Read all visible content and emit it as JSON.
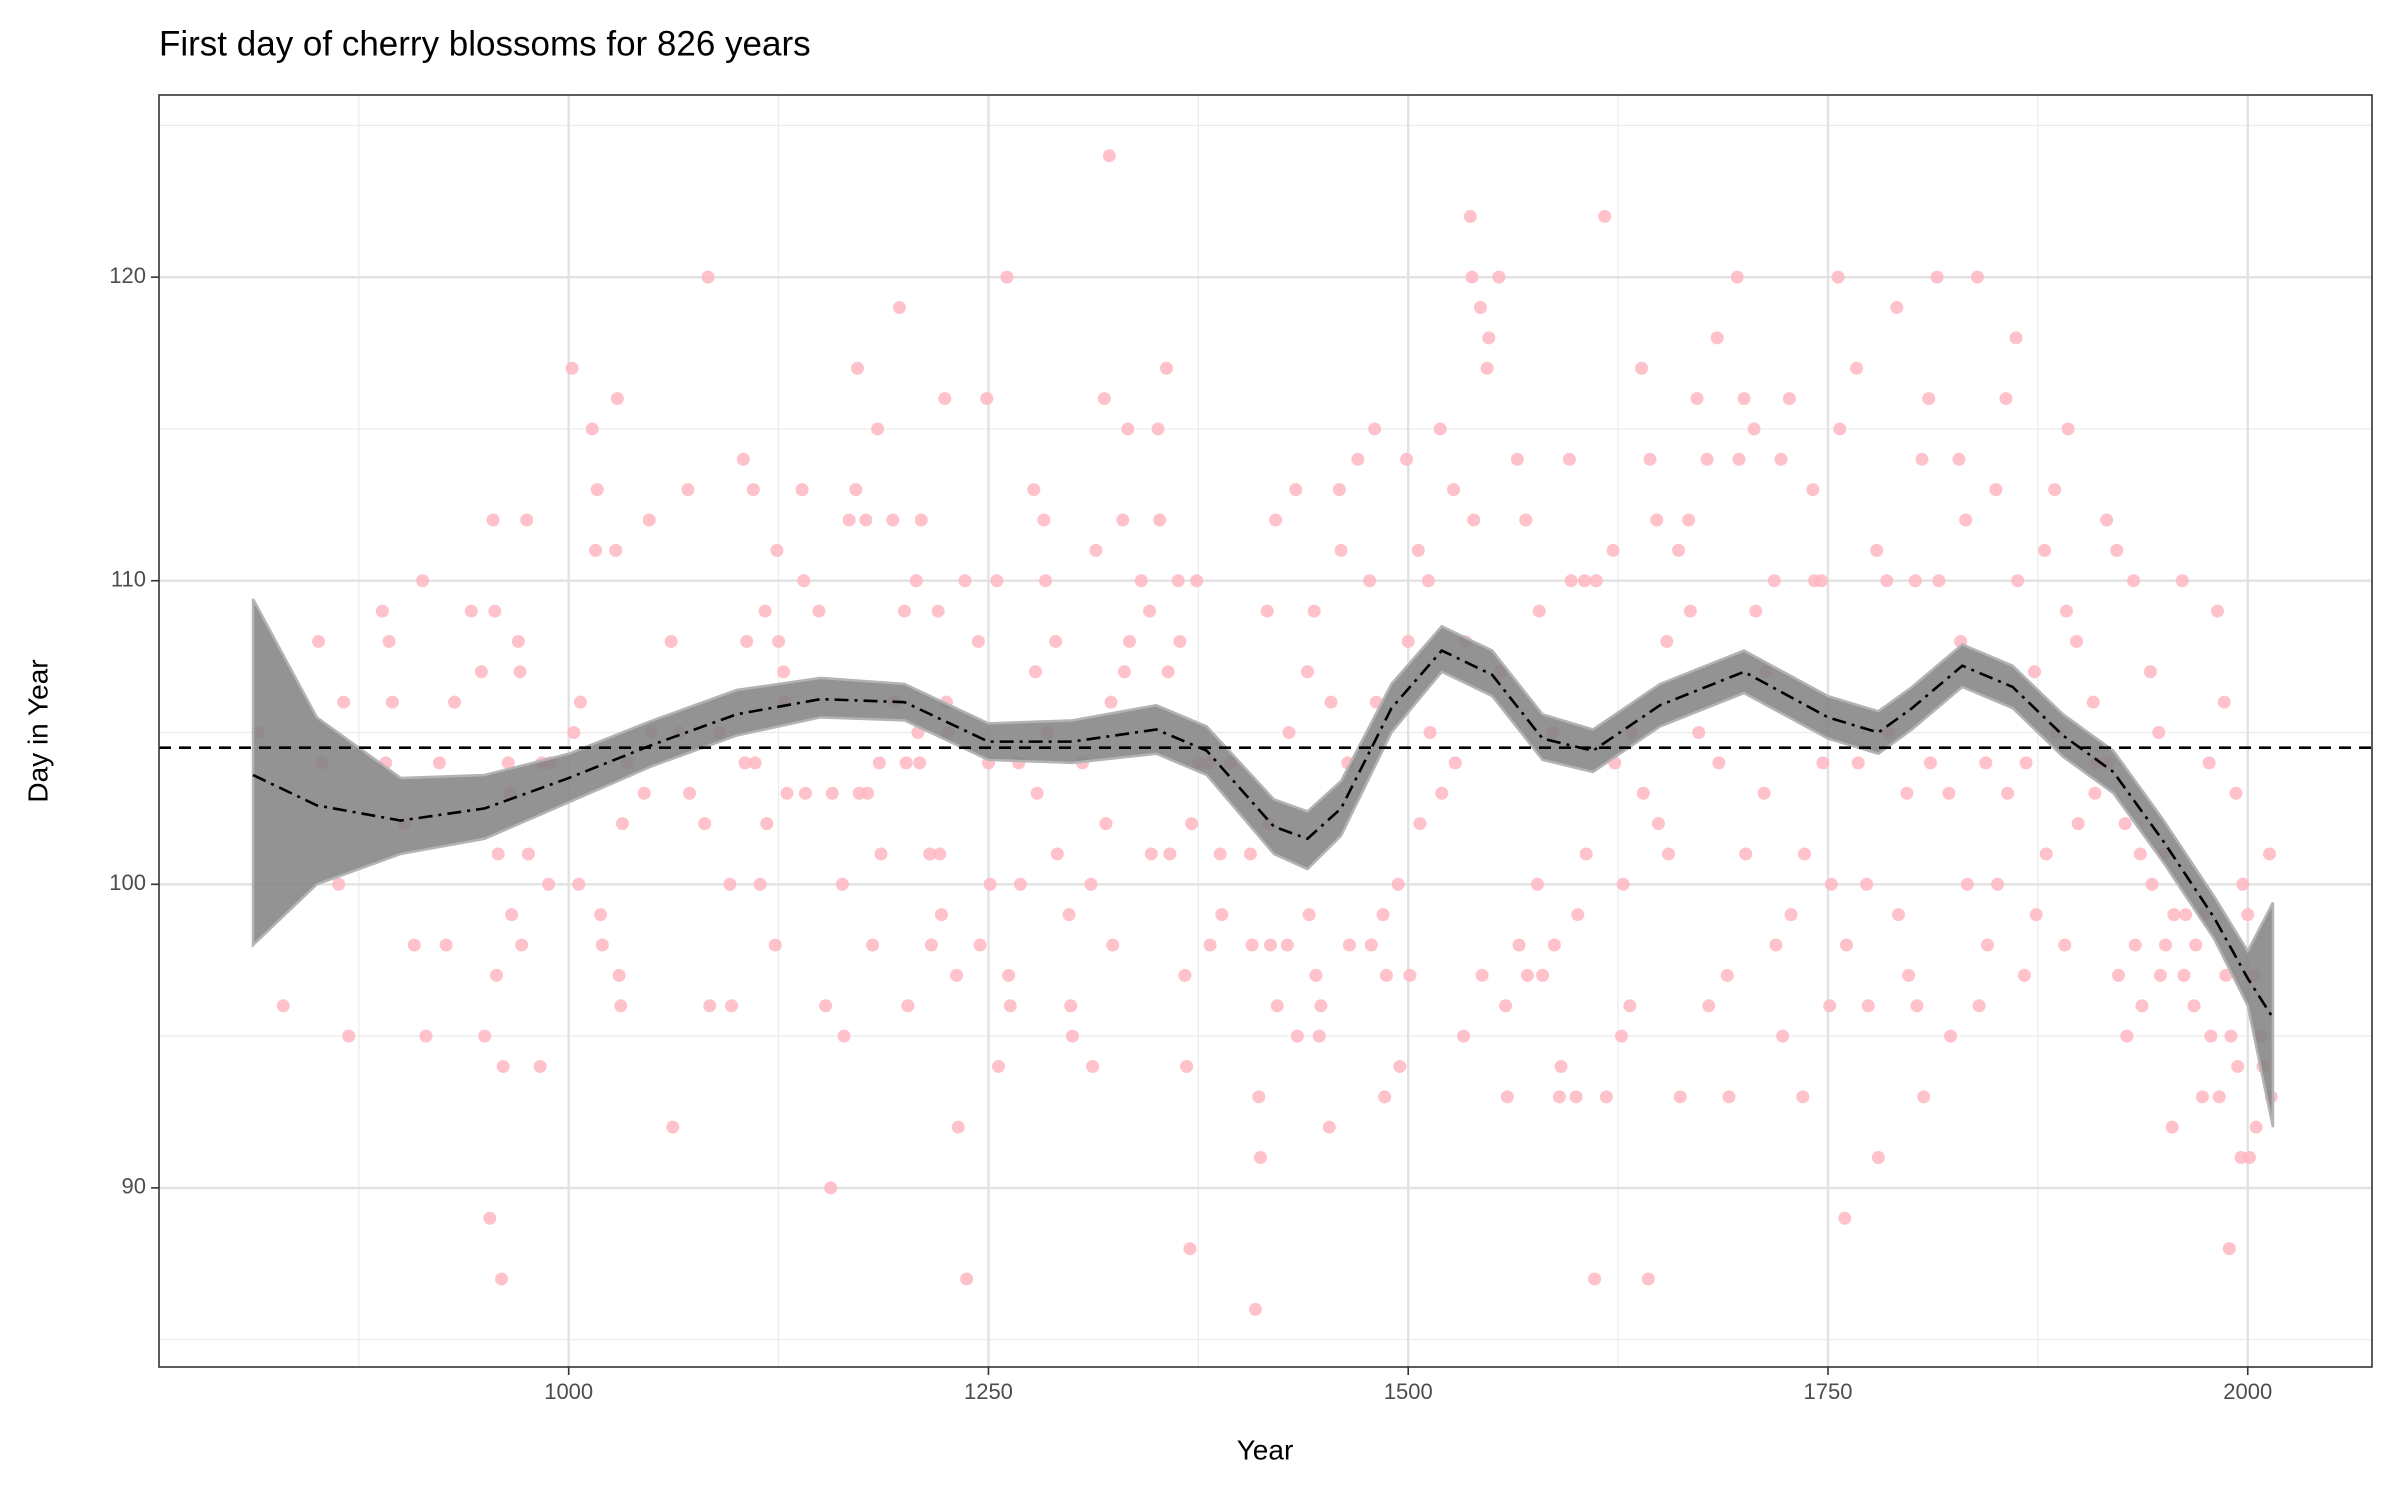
{
  "chart_data": {
    "type": "scatter",
    "title": "First day of cherry blossoms for 826 years",
    "x_label": "Year",
    "y_label": "Day in Year",
    "xlim": [
      756,
      2074
    ],
    "ylim": [
      84.1,
      126.0
    ],
    "xticks": [
      1000,
      1250,
      1500,
      1750,
      2000
    ],
    "yticks": [
      90,
      100,
      110,
      120
    ],
    "x_minor_ticks": [
      875,
      1125,
      1375,
      1625,
      1875
    ],
    "y_minor_ticks": [
      85,
      95,
      105,
      115,
      125
    ],
    "grid": true,
    "color": "#ffb6c1",
    "x": [
      815,
      830,
      851,
      853,
      863,
      866,
      869,
      889,
      891,
      893,
      895,
      902,
      913,
      915,
      908,
      923,
      927,
      932,
      942,
      948,
      950,
      953,
      955,
      956,
      957,
      958,
      960,
      961,
      964,
      965,
      966,
      970,
      971,
      972,
      975,
      976,
      983,
      984,
      988,
      989,
      1002,
      1003,
      1006,
      1007,
      1014,
      1016,
      1017,
      1019,
      1020,
      1029,
      1028,
      1030,
      1031,
      1032,
      1035,
      1045,
      1048,
      1049,
      1061,
      1062,
      1066,
      1071,
      1072,
      1081,
      1083,
      1084,
      1090,
      1096,
      1097,
      1104,
      1105,
      1106,
      1110,
      1111,
      1114,
      1117,
      1118,
      1123,
      1124,
      1125,
      1128,
      1129,
      1130,
      1139,
      1140,
      1141,
      1149,
      1153,
      1156,
      1157,
      1163,
      1164,
      1167,
      1171,
      1172,
      1173,
      1177,
      1178,
      1181,
      1184,
      1185,
      1186,
      1193,
      1194,
      1197,
      1200,
      1201,
      1202,
      1207,
      1208,
      1209,
      1210,
      1215,
      1216,
      1220,
      1221,
      1222,
      1224,
      1225,
      1226,
      1231,
      1232,
      1236,
      1237,
      1244,
      1245,
      1249,
      1250,
      1251,
      1255,
      1256,
      1261,
      1262,
      1263,
      1268,
      1269,
      1277,
      1278,
      1279,
      1283,
      1284,
      1285,
      1290,
      1291,
      1298,
      1299,
      1300,
      1306,
      1311,
      1312,
      1314,
      1319,
      1320,
      1322,
      1323,
      1324,
      1330,
      1331,
      1333,
      1334,
      1341,
      1346,
      1347,
      1351,
      1352,
      1356,
      1357,
      1358,
      1363,
      1364,
      1367,
      1368,
      1370,
      1371,
      1374,
      1375,
      1381,
      1382,
      1388,
      1389,
      1394,
      1406,
      1407,
      1409,
      1411,
      1412,
      1416,
      1417,
      1418,
      1421,
      1422,
      1428,
      1429,
      1433,
      1434,
      1440,
      1441,
      1444,
      1445,
      1447,
      1448,
      1453,
      1454,
      1459,
      1460,
      1464,
      1465,
      1470,
      1477,
      1478,
      1480,
      1481,
      1485,
      1486,
      1487,
      1494,
      1495,
      1499,
      1500,
      1501,
      1506,
      1507,
      1512,
      1513,
      1519,
      1520,
      1527,
      1528,
      1533,
      1534,
      1537,
      1538,
      1539,
      1543,
      1544,
      1547,
      1548,
      1554,
      1555,
      1558,
      1559,
      1565,
      1566,
      1570,
      1571,
      1577,
      1578,
      1580,
      1586,
      1587,
      1590,
      1591,
      1596,
      1597,
      1600,
      1601,
      1605,
      1606,
      1611,
      1612,
      1617,
      1618,
      1622,
      1623,
      1627,
      1628,
      1632,
      1633,
      1639,
      1640,
      1643,
      1644,
      1648,
      1649,
      1654,
      1655,
      1661,
      1662,
      1667,
      1668,
      1672,
      1673,
      1678,
      1679,
      1684,
      1685,
      1690,
      1691,
      1696,
      1697,
      1700,
      1701,
      1706,
      1707,
      1712,
      1713,
      1718,
      1719,
      1722,
      1723,
      1727,
      1728,
      1735,
      1736,
      1741,
      1742,
      1746,
      1747,
      1751,
      1752,
      1756,
      1757,
      1760,
      1761,
      1767,
      1768,
      1773,
      1774,
      1779,
      1780,
      1785,
      1786,
      1791,
      1792,
      1797,
      1798,
      1802,
      1803,
      1806,
      1807,
      1810,
      1811,
      1815,
      1816,
      1822,
      1823,
      1828,
      1829,
      1832,
      1833,
      1839,
      1840,
      1844,
      1845,
      1850,
      1851,
      1856,
      1857,
      1862,
      1863,
      1867,
      1868,
      1873,
      1874,
      1879,
      1880,
      1885,
      1886,
      1891,
      1892,
      1893,
      1898,
      1899,
      1908,
      1909,
      1910,
      1916,
      1917,
      1922,
      1923,
      1927,
      1928,
      1932,
      1933,
      1936,
      1937,
      1942,
      1943,
      1947,
      1948,
      1950,
      1951,
      1955,
      1956,
      1961,
      1962,
      1963,
      1968,
      1969,
      1973,
      1974,
      1977,
      1978,
      1982,
      1983,
      1986,
      1987,
      1989,
      1990,
      1993,
      1994,
      1996,
      1997,
      2000,
      2001,
      2004,
      2005,
      2008,
      2009,
      2013,
      2014
    ],
    "values": [
      105,
      96,
      108,
      104,
      100,
      106,
      95,
      109,
      104,
      108,
      106,
      102,
      110,
      95,
      98,
      104,
      98,
      106,
      109,
      107,
      95,
      89,
      112,
      109,
      97,
      101,
      87,
      94,
      104,
      103,
      99,
      108,
      107,
      98,
      112,
      101,
      94,
      104,
      100,
      104,
      117,
      105,
      100,
      106,
      115,
      111,
      113,
      99,
      98,
      116,
      111,
      97,
      96,
      102,
      104,
      103,
      112,
      105,
      108,
      92,
      105,
      113,
      103,
      102,
      120,
      96,
      105,
      100,
      96,
      114,
      104,
      108,
      113,
      104,
      100,
      109,
      102,
      98,
      111,
      108,
      107,
      106,
      103,
      113,
      110,
      103,
      109,
      96,
      90,
      103,
      100,
      95,
      112,
      113,
      117,
      103,
      112,
      103,
      98,
      115,
      104,
      101,
      112,
      106,
      119,
      109,
      104,
      96,
      110,
      105,
      104,
      112,
      101,
      98,
      109,
      101,
      99,
      116,
      106,
      105,
      97,
      92,
      110,
      87,
      108,
      98,
      116,
      104,
      100,
      110,
      94,
      120,
      97,
      96,
      104,
      100,
      113,
      107,
      103,
      112,
      110,
      105,
      108,
      101,
      99,
      96,
      95,
      104,
      100,
      94,
      111,
      116,
      102,
      124,
      106,
      98,
      112,
      107,
      115,
      108,
      110,
      109,
      101,
      115,
      112,
      117,
      107,
      101,
      110,
      108,
      97,
      94,
      88,
      102,
      110,
      104,
      104,
      98,
      101,
      99,
      104,
      101,
      98,
      86,
      93,
      91,
      109,
      102,
      98,
      112,
      96,
      98,
      105,
      113,
      95,
      107,
      99,
      109,
      97,
      95,
      96,
      92,
      106,
      113,
      111,
      104,
      98,
      114,
      110,
      98,
      115,
      106,
      99,
      93,
      97,
      100,
      94,
      114,
      108,
      97,
      111,
      102,
      110,
      105,
      115,
      103,
      113,
      104,
      95,
      108,
      122,
      120,
      112,
      119,
      97,
      117,
      118,
      120,
      107,
      96,
      93,
      114,
      98,
      112,
      97,
      100,
      109,
      97,
      105,
      98,
      93,
      94,
      114,
      110,
      93,
      99,
      110,
      101,
      87,
      110,
      122,
      93,
      111,
      104,
      95,
      100,
      96,
      105,
      117,
      103,
      87,
      114,
      112,
      102,
      108,
      101,
      111,
      93,
      112,
      109,
      116,
      105,
      114,
      96,
      118,
      104,
      97,
      93,
      120,
      114,
      116,
      101,
      115,
      109,
      103,
      107,
      110,
      98,
      114,
      95,
      116,
      99,
      93,
      101,
      113,
      110,
      110,
      104,
      96,
      100,
      120,
      115,
      89,
      98,
      117,
      104,
      100,
      96,
      111,
      91,
      110,
      105,
      119,
      99,
      103,
      97,
      110,
      96,
      114,
      93,
      116,
      104,
      120,
      110,
      103,
      95,
      114,
      108,
      112,
      100,
      120,
      96,
      104,
      98,
      113,
      100,
      116,
      103,
      118,
      110,
      97,
      104,
      107,
      99,
      111,
      101,
      113,
      105,
      98,
      109,
      115,
      108,
      102,
      106,
      103,
      104,
      112,
      104,
      111,
      97,
      102,
      95,
      110,
      98,
      101,
      96,
      107,
      100,
      105,
      97,
      101,
      98,
      92,
      99,
      110,
      97,
      99,
      96,
      98,
      93,
      99,
      104,
      95,
      109,
      93,
      106,
      97,
      88,
      95,
      103,
      94,
      91,
      100,
      99,
      91,
      97,
      92,
      95,
      94,
      101,
      93
    ],
    "smooth": {
      "color": "#000000",
      "band_color": "#808080",
      "x": [
        812,
        850,
        900,
        950,
        1000,
        1050,
        1100,
        1150,
        1200,
        1250,
        1300,
        1350,
        1380,
        1420,
        1440,
        1460,
        1490,
        1520,
        1550,
        1580,
        1610,
        1650,
        1700,
        1750,
        1780,
        1800,
        1830,
        1860,
        1890,
        1920,
        1950,
        1980,
        2000,
        2015
      ],
      "values": [
        103.6,
        102.6,
        102.1,
        102.5,
        103.5,
        104.6,
        105.6,
        106.1,
        106.0,
        104.7,
        104.7,
        105.1,
        104.4,
        101.9,
        101.5,
        102.5,
        105.8,
        107.7,
        106.9,
        104.8,
        104.4,
        105.9,
        107.0,
        105.5,
        105.0,
        105.8,
        107.2,
        106.5,
        104.9,
        103.7,
        101.4,
        98.9,
        96.9,
        95.6
      ],
      "lower": [
        98.0,
        100.0,
        101.0,
        101.5,
        102.7,
        103.9,
        104.9,
        105.5,
        105.4,
        104.1,
        104.0,
        104.3,
        103.6,
        101.0,
        100.5,
        101.6,
        105.0,
        107.0,
        106.2,
        104.1,
        103.7,
        105.2,
        106.3,
        104.8,
        104.3,
        105.1,
        106.5,
        105.8,
        104.2,
        103.0,
        100.7,
        98.2,
        96.0,
        92.0
      ],
      "upper": [
        109.4,
        105.5,
        103.5,
        103.6,
        104.3,
        105.4,
        106.4,
        106.8,
        106.6,
        105.3,
        105.4,
        105.9,
        105.2,
        102.8,
        102.4,
        103.4,
        106.6,
        108.5,
        107.7,
        105.6,
        105.1,
        106.6,
        107.7,
        106.2,
        105.7,
        106.5,
        107.9,
        107.2,
        105.6,
        104.4,
        102.1,
        99.6,
        97.8,
        99.4
      ]
    },
    "mean_line": {
      "value": 104.5,
      "color": "#000000"
    }
  }
}
